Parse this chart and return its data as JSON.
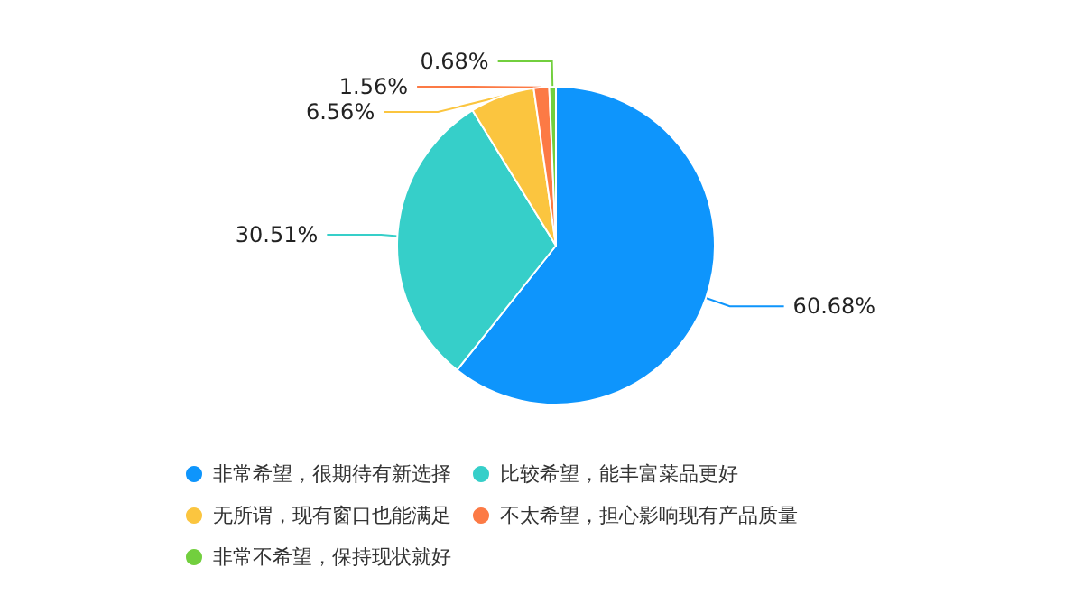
{
  "chart_data": {
    "type": "pie",
    "categories": [
      "非常希望，很期待有新选择",
      "比较希望，能丰富菜品更好",
      "无所谓，现有窗口也能满足",
      "不太希望，担心影响现有产品质量",
      "非常不希望，保持现状就好"
    ],
    "values": [
      60.68,
      30.51,
      6.56,
      1.56,
      0.68
    ],
    "value_labels": [
      "60.68%",
      "30.51%",
      "6.56%",
      "1.56%",
      "0.68%"
    ],
    "colors": [
      "#0e95fc",
      "#36cfc9",
      "#fbc53f",
      "#fc7a45",
      "#72cf3e"
    ],
    "legend": "bottom"
  }
}
